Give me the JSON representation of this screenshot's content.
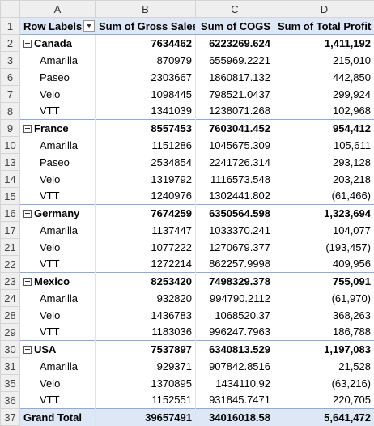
{
  "columns": [
    "A",
    "B",
    "C",
    "D"
  ],
  "header": {
    "row_num": "1",
    "labels": "Row Labels",
    "gross": "Sum of Gross Sales",
    "cogs": "Sum of COGS",
    "profit": "Sum of Total Profit"
  },
  "countries": [
    {
      "row_num": "2",
      "name": "Canada",
      "gross": "7634462",
      "cogs": "6223269.624",
      "profit": "1,411,192",
      "items": [
        {
          "row_num": "3",
          "name": "Amarilla",
          "gross": "870979",
          "cogs": "655969.2221",
          "profit": "215,010"
        },
        {
          "row_num": "6",
          "name": "Paseo",
          "gross": "2303667",
          "cogs": "1860817.132",
          "profit": "442,850"
        },
        {
          "row_num": "7",
          "name": "Velo",
          "gross": "1098445",
          "cogs": "798521.0437",
          "profit": "299,924"
        },
        {
          "row_num": "8",
          "name": "VTT",
          "gross": "1341039",
          "cogs": "1238071.268",
          "profit": "102,968"
        }
      ]
    },
    {
      "row_num": "9",
      "name": "France",
      "gross": "8557453",
      "cogs": "7603041.452",
      "profit": "954,412",
      "items": [
        {
          "row_num": "10",
          "name": "Amarilla",
          "gross": "1151286",
          "cogs": "1045675.309",
          "profit": "105,611"
        },
        {
          "row_num": "13",
          "name": "Paseo",
          "gross": "2534854",
          "cogs": "2241726.314",
          "profit": "293,128"
        },
        {
          "row_num": "14",
          "name": "Velo",
          "gross": "1319792",
          "cogs": "1116573.548",
          "profit": "203,218"
        },
        {
          "row_num": "15",
          "name": "VTT",
          "gross": "1240976",
          "cogs": "1302441.802",
          "profit": "(61,466)"
        }
      ]
    },
    {
      "row_num": "16",
      "name": "Germany",
      "gross": "7674259",
      "cogs": "6350564.598",
      "profit": "1,323,694",
      "items": [
        {
          "row_num": "17",
          "name": "Amarilla",
          "gross": "1137447",
          "cogs": "1033370.241",
          "profit": "104,077"
        },
        {
          "row_num": "21",
          "name": "Velo",
          "gross": "1077222",
          "cogs": "1270679.377",
          "profit": "(193,457)"
        },
        {
          "row_num": "22",
          "name": "VTT",
          "gross": "1272214",
          "cogs": "862257.9998",
          "profit": "409,956"
        }
      ]
    },
    {
      "row_num": "23",
      "name": "Mexico",
      "gross": "8253420",
      "cogs": "7498329.378",
      "profit": "755,091",
      "items": [
        {
          "row_num": "24",
          "name": "Amarilla",
          "gross": "932820",
          "cogs": "994790.2112",
          "profit": "(61,970)"
        },
        {
          "row_num": "28",
          "name": "Velo",
          "gross": "1436783",
          "cogs": "1068520.37",
          "profit": "368,263"
        },
        {
          "row_num": "29",
          "name": "VTT",
          "gross": "1183036",
          "cogs": "996247.7963",
          "profit": "186,788"
        }
      ]
    },
    {
      "row_num": "30",
      "name": "USA",
      "gross": "7537897",
      "cogs": "6340813.529",
      "profit": "1,197,083",
      "items": [
        {
          "row_num": "31",
          "name": "Amarilla",
          "gross": "929371",
          "cogs": "907842.8516",
          "profit": "21,528"
        },
        {
          "row_num": "35",
          "name": "Velo",
          "gross": "1370895",
          "cogs": "1434110.92",
          "profit": "(63,216)"
        },
        {
          "row_num": "36",
          "name": "VTT",
          "gross": "1152551",
          "cogs": "931845.7471",
          "profit": "220,705"
        }
      ]
    }
  ],
  "grand_total": {
    "row_num": "37",
    "label": "Grand Total",
    "gross": "39657491",
    "cogs": "34016018.58",
    "profit": "5,641,472"
  }
}
